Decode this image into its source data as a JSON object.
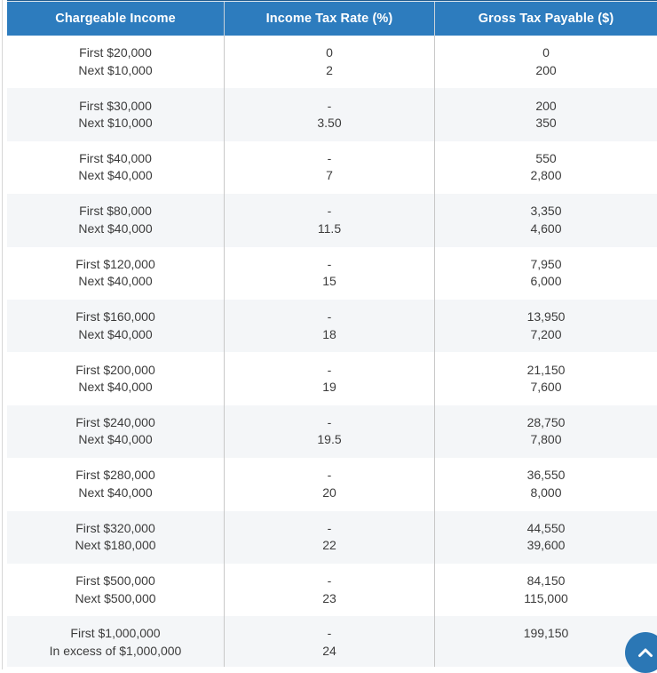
{
  "colors": {
    "page_bg": "#ffffff",
    "header_bg": "#2d7cbe",
    "header_text": "#ffffff",
    "header_top_line": "#1f5a8d",
    "row_bg": "#ffffff",
    "row_alt_bg": "#f4f6f8",
    "body_text": "#3c3c3c",
    "divider": "#c8c8c8",
    "back_to_top_bg": "#2b77b5",
    "back_to_top_icon": "#ffffff"
  },
  "table": {
    "columns": [
      "Chargeable Income",
      "Income Tax Rate (%)",
      "Gross Tax Payable ($)"
    ],
    "rows": [
      {
        "income": [
          "First $20,000",
          "Next $10,000"
        ],
        "rate": [
          "0",
          "2"
        ],
        "payable": [
          "0",
          "200"
        ]
      },
      {
        "income": [
          "First $30,000",
          "Next $10,000"
        ],
        "rate": [
          "-",
          "3.50"
        ],
        "payable": [
          "200",
          "350"
        ]
      },
      {
        "income": [
          "First $40,000",
          "Next $40,000"
        ],
        "rate": [
          "-",
          "7"
        ],
        "payable": [
          "550",
          "2,800"
        ]
      },
      {
        "income": [
          "First $80,000",
          "Next $40,000"
        ],
        "rate": [
          "-",
          "11.5"
        ],
        "payable": [
          "3,350",
          "4,600"
        ]
      },
      {
        "income": [
          "First $120,000",
          "Next $40,000"
        ],
        "rate": [
          "-",
          "15"
        ],
        "payable": [
          "7,950",
          "6,000"
        ]
      },
      {
        "income": [
          "First $160,000",
          "Next $40,000"
        ],
        "rate": [
          "-",
          "18"
        ],
        "payable": [
          "13,950",
          "7,200"
        ]
      },
      {
        "income": [
          "First $200,000",
          "Next $40,000"
        ],
        "rate": [
          "-",
          "19"
        ],
        "payable": [
          "21,150",
          "7,600"
        ]
      },
      {
        "income": [
          "First $240,000",
          "Next $40,000"
        ],
        "rate": [
          "-",
          "19.5"
        ],
        "payable": [
          "28,750",
          "7,800"
        ]
      },
      {
        "income": [
          "First $280,000",
          "Next $40,000"
        ],
        "rate": [
          "-",
          "20"
        ],
        "payable": [
          "36,550",
          "8,000"
        ]
      },
      {
        "income": [
          "First $320,000",
          "Next $180,000"
        ],
        "rate": [
          "-",
          "22"
        ],
        "payable": [
          "44,550",
          "39,600"
        ]
      },
      {
        "income": [
          "First $500,000",
          "Next $500,000"
        ],
        "rate": [
          "-",
          "23"
        ],
        "payable": [
          "84,150",
          "115,000"
        ]
      },
      {
        "income": [
          "First $1,000,000",
          "In excess of $1,000,000"
        ],
        "rate": [
          "-",
          "24"
        ],
        "payable": [
          "199,150",
          ""
        ]
      }
    ]
  },
  "back_to_top": {
    "icon": "chevron-up"
  }
}
